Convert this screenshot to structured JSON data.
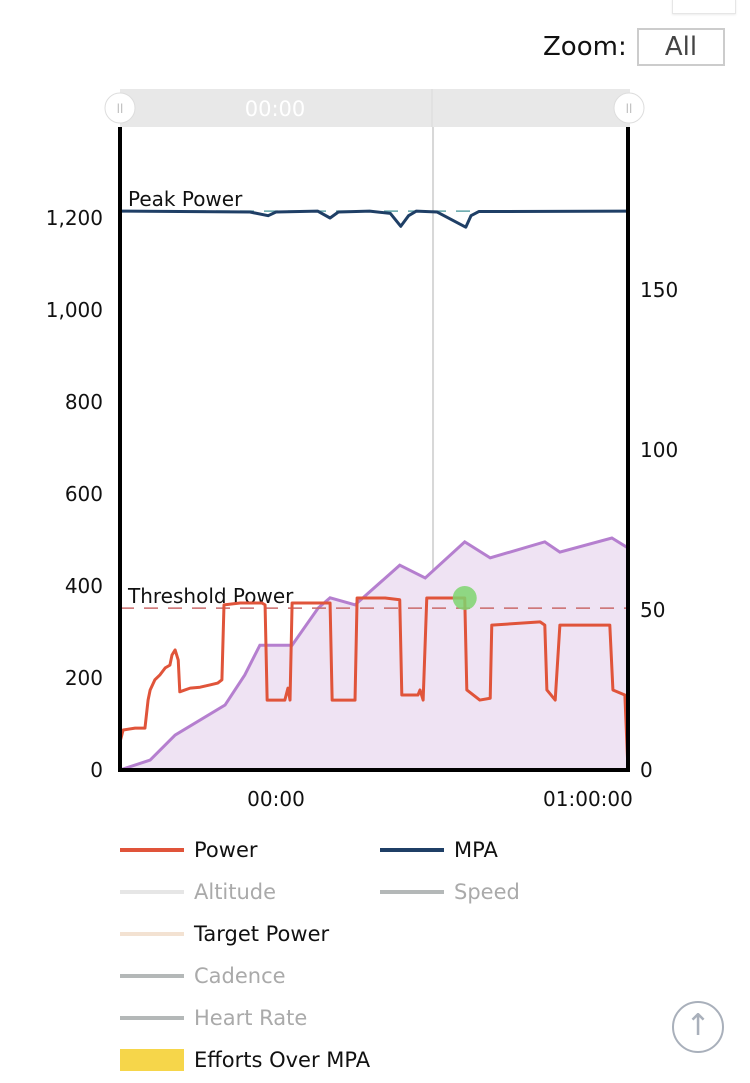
{
  "zoom": {
    "label": "Zoom:",
    "button": "All"
  },
  "navigator": {
    "label": "00:00"
  },
  "chart_data": {
    "type": "line",
    "x_unit": "minutes",
    "xlim": [
      -30,
      67.7
    ],
    "x_ticks": [
      {
        "v": 0,
        "label": "00:00"
      },
      {
        "v": 60,
        "label": "01:00:00"
      }
    ],
    "y_left": {
      "lim": [
        0,
        1380
      ],
      "ticks": [
        0,
        200,
        400,
        600,
        800,
        1000,
        1200
      ],
      "tick_labels": [
        "0",
        "200",
        "400",
        "600",
        "800",
        "1,000",
        "1,200"
      ]
    },
    "y_right": {
      "lim": [
        0,
        110
      ],
      "ticks": [
        0,
        50,
        100,
        150
      ],
      "tick_labels": [
        "0",
        "50",
        "100",
        "150"
      ]
    },
    "plot_lines": [
      {
        "label": "Peak Power",
        "value": 1215,
        "color": "#5fa3a8"
      },
      {
        "label": "Threshold Power",
        "value": 352,
        "color": "#c96a6a"
      }
    ],
    "series": [
      {
        "name": "Power",
        "axis": "left",
        "color": "#e0543a",
        "points": [
          [
            -30,
            0
          ],
          [
            -30,
            61
          ],
          [
            -29.4,
            87
          ],
          [
            -27.1,
            91
          ],
          [
            -25.2,
            91
          ],
          [
            -24.6,
            152
          ],
          [
            -24.2,
            174
          ],
          [
            -23.3,
            196
          ],
          [
            -22.3,
            207
          ],
          [
            -21.3,
            222
          ],
          [
            -20.4,
            228
          ],
          [
            -20,
            250
          ],
          [
            -19.4,
            261
          ],
          [
            -18.8,
            239
          ],
          [
            -18.5,
            170
          ],
          [
            -17.5,
            174
          ],
          [
            -16.5,
            178
          ],
          [
            -14.6,
            180
          ],
          [
            -12.7,
            185
          ],
          [
            -11.2,
            189
          ],
          [
            -10.4,
            196
          ],
          [
            -10,
            359
          ],
          [
            -6.9,
            363
          ],
          [
            -2.7,
            363
          ],
          [
            -2.1,
            359
          ],
          [
            -1.7,
            152
          ],
          [
            1.7,
            152
          ],
          [
            2.3,
            178
          ],
          [
            2.7,
            152
          ],
          [
            3.1,
            363
          ],
          [
            8.5,
            363
          ],
          [
            10.4,
            363
          ],
          [
            10.8,
            152
          ],
          [
            15.2,
            152
          ],
          [
            15.6,
            374
          ],
          [
            21,
            374
          ],
          [
            23.8,
            370
          ],
          [
            24.2,
            163
          ],
          [
            27.3,
            163
          ],
          [
            27.7,
            174
          ],
          [
            28.3,
            152
          ],
          [
            29,
            374
          ],
          [
            33.5,
            374
          ],
          [
            36.3,
            374
          ],
          [
            36.7,
            174
          ],
          [
            39.2,
            152
          ],
          [
            41.2,
            156
          ],
          [
            41.5,
            315
          ],
          [
            50.8,
            322
          ],
          [
            51.7,
            315
          ],
          [
            52.1,
            174
          ],
          [
            53.7,
            152
          ],
          [
            54.6,
            315
          ],
          [
            64.2,
            315
          ],
          [
            64.8,
            174
          ],
          [
            67.1,
            163
          ],
          [
            67.7,
            0
          ]
        ]
      },
      {
        "name": "MPA",
        "axis": "left",
        "color": "#1f3f66",
        "points": [
          [
            -30,
            1215
          ],
          [
            -5,
            1213
          ],
          [
            -1.5,
            1205
          ],
          [
            0,
            1213
          ],
          [
            8,
            1215
          ],
          [
            10.4,
            1200
          ],
          [
            12,
            1213
          ],
          [
            18,
            1215
          ],
          [
            22,
            1210
          ],
          [
            24,
            1182
          ],
          [
            25.5,
            1205
          ],
          [
            27,
            1215
          ],
          [
            31,
            1213
          ],
          [
            36.5,
            1180
          ],
          [
            37.5,
            1205
          ],
          [
            39,
            1214
          ],
          [
            67.7,
            1215
          ]
        ]
      },
      {
        "name": "",
        "axis": "right",
        "type": "area",
        "color": "#b57fcf",
        "fill": "#efe3f3",
        "points": [
          [
            -30,
            0
          ],
          [
            -24.2,
            3.1
          ],
          [
            -19.4,
            10.9
          ],
          [
            -9.8,
            20.3
          ],
          [
            -6,
            29.7
          ],
          [
            -3.1,
            39
          ],
          [
            -0.2,
            39
          ],
          [
            3.1,
            39
          ],
          [
            8.1,
            50.6
          ],
          [
            10.4,
            53.8
          ],
          [
            15.2,
            51.6
          ],
          [
            23.8,
            64
          ],
          [
            28.7,
            60
          ],
          [
            36.3,
            71.3
          ],
          [
            41.2,
            66.3
          ],
          [
            51.7,
            71.3
          ],
          [
            54.6,
            68.1
          ],
          [
            64.6,
            72.5
          ],
          [
            67.7,
            69.4
          ]
        ]
      }
    ],
    "marker": {
      "x": 36.3,
      "y": 374,
      "color": "#7ed56f"
    },
    "crosshair_x": 30.2,
    "legend": [
      {
        "name": "Power",
        "color": "#e0543a",
        "active": true
      },
      {
        "name": "MPA",
        "color": "#1f3f66",
        "active": true
      },
      {
        "name": "Altitude",
        "color": "#e6e6e6",
        "active": false
      },
      {
        "name": "Speed",
        "color": "#b4b8b8",
        "active": false
      },
      {
        "name": "Target Power",
        "color": "#f3e2d2",
        "active": true
      },
      {
        "name": "Cadence",
        "color": "#b4b8b8",
        "active": false
      },
      {
        "name": "Heart Rate",
        "color": "#b4b8b8",
        "active": false
      },
      {
        "name": "Efforts Over MPA",
        "color": "#f6d64a",
        "active": true
      }
    ]
  }
}
